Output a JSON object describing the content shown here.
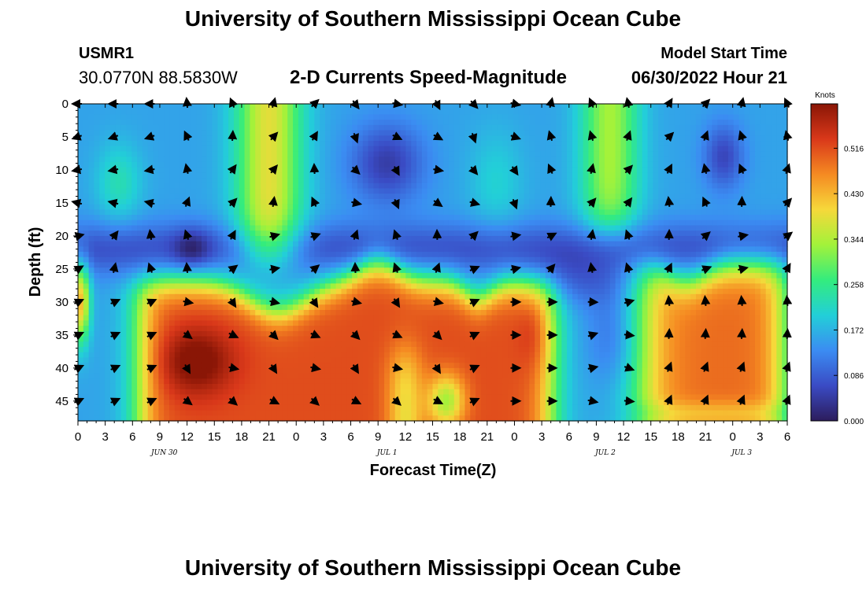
{
  "header": {
    "title": "University of Southern Mississippi Ocean Cube",
    "station_id": "USMR1",
    "coordinates": "30.0770N  88.5830W",
    "subtitle": "2-D Currents Speed-Magnitude",
    "model_start_label": "Model Start Time",
    "model_start_value": "06/30/2022 Hour 21"
  },
  "footer": {
    "title": "University of Southern Mississippi Ocean Cube"
  },
  "chart_data": {
    "type": "heatmap",
    "title": "2-D Currents Speed-Magnitude",
    "xlabel": "Forecast Time(Z)",
    "ylabel": "Depth (ft)",
    "x_tick_labels": [
      "0",
      "3",
      "6",
      "9",
      "12",
      "15",
      "18",
      "21",
      "0",
      "3",
      "6",
      "9",
      "12",
      "15",
      "18",
      "21",
      "0",
      "3",
      "6",
      "9",
      "12",
      "15",
      "18",
      "21",
      "0",
      "3",
      "6"
    ],
    "x_range_hours": [
      0,
      78
    ],
    "date_labels": [
      {
        "label": "JUN 30",
        "hour": 9.5
      },
      {
        "label": "JUL 1",
        "hour": 34
      },
      {
        "label": "JUL 2",
        "hour": 58
      },
      {
        "label": "JUL 3",
        "hour": 73
      }
    ],
    "y_tick_values": [
      0,
      5,
      10,
      15,
      20,
      25,
      30,
      35,
      40,
      45
    ],
    "y_range": [
      0,
      48
    ],
    "y_inverted": true,
    "colorbar": {
      "title": "Knots",
      "min": 0.0,
      "max": 0.6,
      "tick_labels": [
        "0.000",
        "0.086",
        "0.172",
        "0.258",
        "0.344",
        "0.430",
        "0.516"
      ],
      "colors": [
        "#2c1c5c",
        "#3a4bc4",
        "#3b8cf2",
        "#22cfd8",
        "#33ec7e",
        "#a3f23a",
        "#f6d83a",
        "#f58a22",
        "#d9381a",
        "#8a1606"
      ]
    },
    "arrow_columns_hours": [
      0,
      4,
      8,
      12,
      17,
      21.5,
      26,
      30.5,
      35,
      39.5,
      43.5,
      48,
      52,
      56.5,
      60.5,
      65,
      69,
      73,
      78
    ],
    "arrow_rows_depth": [
      0,
      5,
      10,
      15,
      20,
      25,
      30,
      35,
      40,
      45
    ],
    "speed_field_description": "Low speeds (blue) in upper layers except high-speed columns near hours 21 and 57-60; strong surface-to-bottom high speeds (red) below ~27 ft between hours 7-52 and 62-77."
  }
}
